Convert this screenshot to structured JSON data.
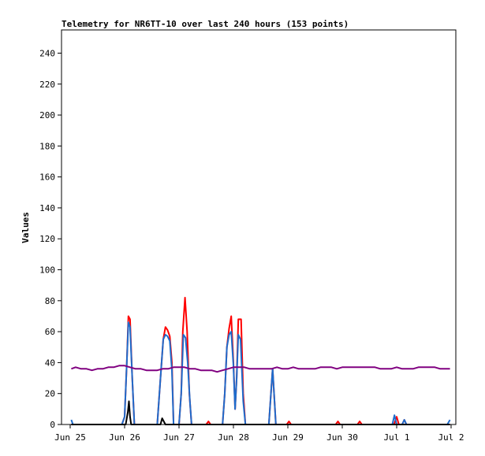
{
  "chart_data": {
    "type": "line",
    "title": "Telemetry for NR6TT-10 over last 240 hours (153 points)",
    "xlabel": "",
    "ylabel": "Values",
    "xlim": [
      "Jun 25",
      "Jul 2"
    ],
    "ylim": [
      0,
      255
    ],
    "x_tick_labels": [
      "Jun 25",
      "Jun 26",
      "Jun 27",
      "Jun 28",
      "Jun 29",
      "Jun 30",
      "Jul 1",
      "Jul 2"
    ],
    "y_ticks": [
      0,
      20,
      40,
      60,
      80,
      100,
      120,
      140,
      160,
      180,
      200,
      220,
      240
    ],
    "grid": false,
    "legend": "none",
    "x_unit": "days since Jun 25",
    "series": [
      {
        "color": "#ff0000",
        "points": [
          [
            0.02,
            0
          ],
          [
            0.95,
            0
          ],
          [
            1.0,
            5
          ],
          [
            1.04,
            40
          ],
          [
            1.07,
            70
          ],
          [
            1.1,
            68
          ],
          [
            1.14,
            30
          ],
          [
            1.18,
            0
          ],
          [
            1.6,
            0
          ],
          [
            1.66,
            30
          ],
          [
            1.71,
            55
          ],
          [
            1.75,
            63
          ],
          [
            1.79,
            61
          ],
          [
            1.83,
            57
          ],
          [
            1.87,
            40
          ],
          [
            1.9,
            0
          ],
          [
            2.0,
            0
          ],
          [
            2.04,
            20
          ],
          [
            2.07,
            60
          ],
          [
            2.11,
            82
          ],
          [
            2.15,
            60
          ],
          [
            2.19,
            20
          ],
          [
            2.23,
            0
          ],
          [
            2.5,
            0
          ],
          [
            2.54,
            2
          ],
          [
            2.58,
            0
          ],
          [
            2.8,
            0
          ],
          [
            2.84,
            20
          ],
          [
            2.88,
            50
          ],
          [
            2.92,
            62
          ],
          [
            2.96,
            70
          ],
          [
            3.0,
            40
          ],
          [
            3.03,
            10
          ],
          [
            3.06,
            30
          ],
          [
            3.09,
            68
          ],
          [
            3.14,
            68
          ],
          [
            3.18,
            20
          ],
          [
            3.22,
            0
          ],
          [
            3.65,
            0
          ],
          [
            3.72,
            36
          ],
          [
            3.78,
            0
          ],
          [
            3.98,
            0
          ],
          [
            4.02,
            2
          ],
          [
            4.06,
            0
          ],
          [
            4.88,
            0
          ],
          [
            4.92,
            2
          ],
          [
            4.96,
            0
          ],
          [
            5.28,
            0
          ],
          [
            5.32,
            2
          ],
          [
            5.36,
            0
          ],
          [
            5.95,
            0
          ],
          [
            6.0,
            5
          ],
          [
            6.04,
            0
          ],
          [
            6.1,
            0
          ],
          [
            6.14,
            3
          ],
          [
            6.18,
            0
          ],
          [
            6.98,
            0
          ]
        ]
      },
      {
        "color": "#1e6ccc",
        "points": [
          [
            0.02,
            3
          ],
          [
            0.05,
            0
          ],
          [
            0.95,
            0
          ],
          [
            1.0,
            5
          ],
          [
            1.04,
            40
          ],
          [
            1.07,
            66
          ],
          [
            1.1,
            63
          ],
          [
            1.14,
            30
          ],
          [
            1.18,
            0
          ],
          [
            1.6,
            0
          ],
          [
            1.66,
            30
          ],
          [
            1.71,
            55
          ],
          [
            1.75,
            58
          ],
          [
            1.79,
            57
          ],
          [
            1.83,
            54
          ],
          [
            1.87,
            35
          ],
          [
            1.9,
            0
          ],
          [
            2.0,
            0
          ],
          [
            2.04,
            20
          ],
          [
            2.08,
            58
          ],
          [
            2.12,
            56
          ],
          [
            2.16,
            40
          ],
          [
            2.2,
            15
          ],
          [
            2.23,
            0
          ],
          [
            2.8,
            0
          ],
          [
            2.84,
            20
          ],
          [
            2.88,
            50
          ],
          [
            2.92,
            58
          ],
          [
            2.96,
            60
          ],
          [
            3.0,
            38
          ],
          [
            3.03,
            10
          ],
          [
            3.06,
            30
          ],
          [
            3.09,
            58
          ],
          [
            3.13,
            55
          ],
          [
            3.18,
            15
          ],
          [
            3.22,
            0
          ],
          [
            3.65,
            0
          ],
          [
            3.72,
            36
          ],
          [
            3.78,
            0
          ],
          [
            5.92,
            0
          ],
          [
            5.96,
            6
          ],
          [
            6.0,
            0
          ],
          [
            6.1,
            0
          ],
          [
            6.14,
            3
          ],
          [
            6.18,
            0
          ],
          [
            6.93,
            0
          ],
          [
            6.98,
            3
          ]
        ]
      },
      {
        "color": "#000000",
        "points": [
          [
            0.02,
            0
          ],
          [
            1.02,
            0
          ],
          [
            1.06,
            8
          ],
          [
            1.08,
            15
          ],
          [
            1.1,
            5
          ],
          [
            1.12,
            0
          ],
          [
            1.66,
            0
          ],
          [
            1.69,
            4
          ],
          [
            1.72,
            2
          ],
          [
            1.75,
            0
          ],
          [
            6.98,
            0
          ]
        ]
      },
      {
        "color": "#800080",
        "points": [
          [
            0.02,
            36
          ],
          [
            0.1,
            37
          ],
          [
            0.2,
            36
          ],
          [
            0.3,
            36
          ],
          [
            0.4,
            35
          ],
          [
            0.5,
            36
          ],
          [
            0.6,
            36
          ],
          [
            0.7,
            37
          ],
          [
            0.8,
            37
          ],
          [
            0.9,
            38
          ],
          [
            1.0,
            38
          ],
          [
            1.1,
            37
          ],
          [
            1.2,
            36
          ],
          [
            1.3,
            36
          ],
          [
            1.4,
            35
          ],
          [
            1.5,
            35
          ],
          [
            1.6,
            35
          ],
          [
            1.7,
            36
          ],
          [
            1.8,
            36
          ],
          [
            1.9,
            37
          ],
          [
            2.0,
            37
          ],
          [
            2.1,
            37
          ],
          [
            2.2,
            36
          ],
          [
            2.3,
            36
          ],
          [
            2.4,
            35
          ],
          [
            2.5,
            35
          ],
          [
            2.6,
            35
          ],
          [
            2.7,
            34
          ],
          [
            2.8,
            35
          ],
          [
            2.9,
            36
          ],
          [
            3.0,
            37
          ],
          [
            3.1,
            37
          ],
          [
            3.2,
            37
          ],
          [
            3.3,
            36
          ],
          [
            3.4,
            36
          ],
          [
            3.5,
            36
          ],
          [
            3.6,
            36
          ],
          [
            3.7,
            36
          ],
          [
            3.8,
            37
          ],
          [
            3.9,
            36
          ],
          [
            4.0,
            36
          ],
          [
            4.1,
            37
          ],
          [
            4.2,
            36
          ],
          [
            4.3,
            36
          ],
          [
            4.4,
            36
          ],
          [
            4.5,
            36
          ],
          [
            4.6,
            37
          ],
          [
            4.7,
            37
          ],
          [
            4.8,
            37
          ],
          [
            4.9,
            36
          ],
          [
            5.0,
            37
          ],
          [
            5.1,
            37
          ],
          [
            5.2,
            37
          ],
          [
            5.3,
            37
          ],
          [
            5.4,
            37
          ],
          [
            5.5,
            37
          ],
          [
            5.6,
            37
          ],
          [
            5.7,
            36
          ],
          [
            5.8,
            36
          ],
          [
            5.9,
            36
          ],
          [
            6.0,
            37
          ],
          [
            6.1,
            36
          ],
          [
            6.2,
            36
          ],
          [
            6.3,
            36
          ],
          [
            6.4,
            37
          ],
          [
            6.5,
            37
          ],
          [
            6.6,
            37
          ],
          [
            6.7,
            37
          ],
          [
            6.8,
            36
          ],
          [
            6.9,
            36
          ],
          [
            6.98,
            36
          ]
        ]
      }
    ]
  }
}
